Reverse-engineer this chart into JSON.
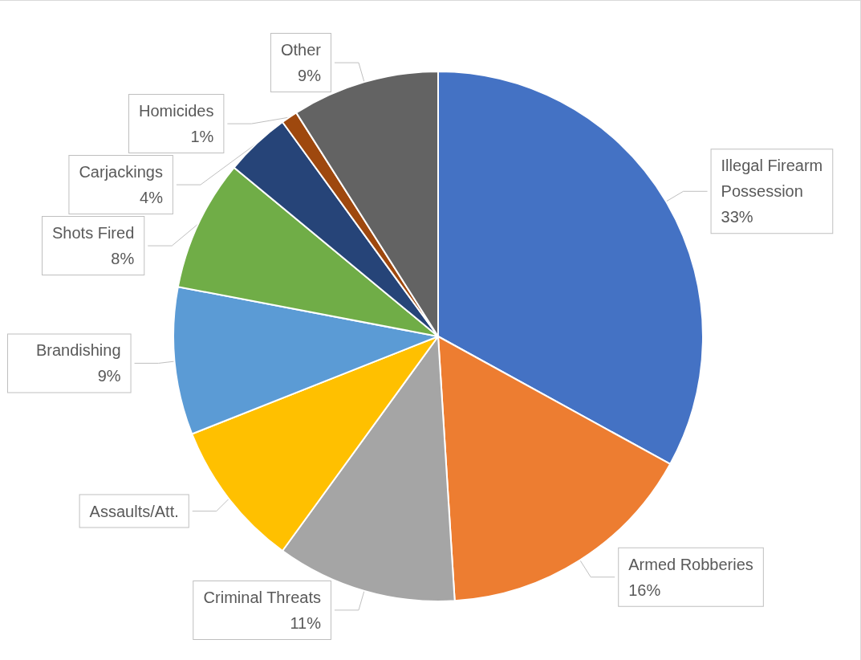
{
  "chart_data": {
    "type": "pie",
    "categories": [
      "Illegal Firearm Possession",
      "Armed Robberies",
      "Criminal Threats",
      "Assaults/Att.",
      "Brandishing",
      "Shots Fired",
      "Carjackings",
      "Homicides",
      "Other"
    ],
    "values": [
      33,
      16,
      11,
      9,
      9,
      8,
      4,
      1,
      9
    ],
    "value_labels": [
      "33%",
      "16%",
      "11%",
      null,
      "9%",
      "8%",
      "4%",
      "1%",
      "9%"
    ],
    "colors": [
      "#4472c4",
      "#ed7d31",
      "#a5a5a5",
      "#ffc000",
      "#5b9bd5",
      "#70ad47",
      "#264478",
      "#9e480e",
      "#636363"
    ],
    "legend": false
  }
}
